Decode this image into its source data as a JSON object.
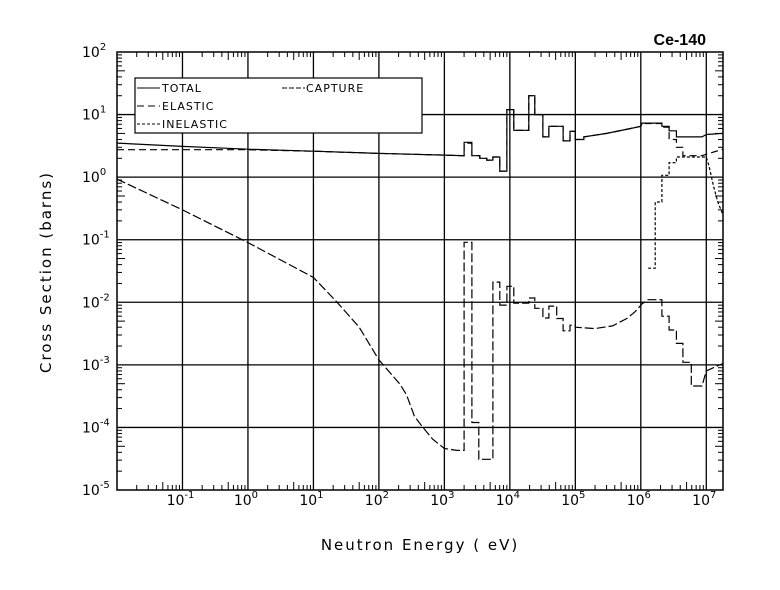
{
  "chart_data": {
    "type": "line",
    "title": "Ce-140",
    "xlabel": "Neutron Energy ( eV)",
    "ylabel": "Cross Section (barns)",
    "xscale": "log",
    "yscale": "log",
    "xlim": [
      0.01,
      18000000
    ],
    "ylim": [
      1e-05,
      100
    ],
    "grid": true,
    "legend_position": "top-left",
    "tick_base": "10",
    "x_tick_exponents": [
      "-1",
      "0",
      "1",
      "2",
      "3",
      "4",
      "5",
      "6",
      "7"
    ],
    "y_tick_exponents": [
      "2",
      "1",
      "0",
      "-1",
      "-2",
      "-3",
      "-4",
      "-5"
    ],
    "series": [
      {
        "name": "TOTAL",
        "style": "solid",
        "points": [
          [
            0.01,
            3.5
          ],
          [
            0.1,
            3.1
          ],
          [
            1,
            2.8
          ],
          [
            10,
            2.6
          ],
          [
            100,
            2.4
          ],
          [
            1000,
            2.25
          ],
          [
            2000,
            2.2
          ],
          [
            2000,
            3.6
          ],
          [
            2630,
            3.6
          ],
          [
            2630,
            2.2
          ],
          [
            3480,
            2.2
          ],
          [
            3480,
            2.0
          ],
          [
            4450,
            2.0
          ],
          [
            4450,
            1.87
          ],
          [
            5500,
            1.87
          ],
          [
            5500,
            2.1
          ],
          [
            7030,
            2.1
          ],
          [
            7030,
            1.25
          ],
          [
            9000,
            1.25
          ],
          [
            9000,
            12
          ],
          [
            11500,
            12
          ],
          [
            11500,
            5.6
          ],
          [
            19500,
            5.6
          ],
          [
            19500,
            20
          ],
          [
            24000,
            20
          ],
          [
            24000,
            10
          ],
          [
            32000,
            10
          ],
          [
            32000,
            4.4
          ],
          [
            39500,
            4.4
          ],
          [
            39500,
            6.5
          ],
          [
            65000,
            6.5
          ],
          [
            65000,
            3.8
          ],
          [
            83000,
            3.8
          ],
          [
            83000,
            5.4
          ],
          [
            100000,
            5.4
          ],
          [
            100000,
            4.0
          ],
          [
            135000,
            4.0
          ],
          [
            135000,
            4.4
          ],
          [
            300000,
            5.0
          ],
          [
            600000,
            5.8
          ],
          [
            1000000,
            6.5
          ],
          [
            1050000,
            7.3
          ],
          [
            2100000,
            7.3
          ],
          [
            2100000,
            6.5
          ],
          [
            2700000,
            6.5
          ],
          [
            2700000,
            5.5
          ],
          [
            3500000,
            5.5
          ],
          [
            3500000,
            4.4
          ],
          [
            8600000,
            4.4
          ],
          [
            10000000,
            4.8
          ],
          [
            18000000,
            5.0
          ]
        ]
      },
      {
        "name": "ELASTIC",
        "style": "dashed",
        "points": [
          [
            0.01,
            2.75
          ],
          [
            0.1,
            2.75
          ],
          [
            1,
            2.75
          ],
          [
            10,
            2.6
          ],
          [
            100,
            2.4
          ],
          [
            1000,
            2.25
          ],
          [
            2000,
            2.2
          ],
          [
            2000,
            3.5
          ],
          [
            2630,
            3.5
          ],
          [
            2630,
            2.2
          ],
          [
            3480,
            2.2
          ],
          [
            3480,
            2.0
          ],
          [
            4450,
            2.0
          ],
          [
            4450,
            1.87
          ],
          [
            5500,
            1.87
          ],
          [
            5500,
            2.1
          ],
          [
            7030,
            2.1
          ],
          [
            7030,
            1.25
          ],
          [
            9000,
            1.25
          ],
          [
            9000,
            12
          ],
          [
            11500,
            12
          ],
          [
            11500,
            5.6
          ],
          [
            19500,
            5.6
          ],
          [
            19500,
            20
          ],
          [
            24000,
            20
          ],
          [
            24000,
            10
          ],
          [
            32000,
            10
          ],
          [
            32000,
            4.4
          ],
          [
            39500,
            4.4
          ],
          [
            39500,
            6.5
          ],
          [
            65000,
            6.5
          ],
          [
            65000,
            3.8
          ],
          [
            83000,
            3.8
          ],
          [
            83000,
            5.4
          ],
          [
            100000,
            5.4
          ],
          [
            100000,
            4.0
          ],
          [
            135000,
            4.0
          ],
          [
            135000,
            4.4
          ],
          [
            300000,
            5.0
          ],
          [
            600000,
            5.8
          ],
          [
            1000000,
            6.5
          ],
          [
            1050000,
            7.2
          ],
          [
            2100000,
            7.2
          ],
          [
            2100000,
            6.3
          ],
          [
            2700000,
            6.3
          ],
          [
            2700000,
            4.0
          ],
          [
            3500000,
            4.0
          ],
          [
            3500000,
            3.0
          ],
          [
            4400000,
            3.0
          ],
          [
            4400000,
            2.2
          ],
          [
            8600000,
            2.2
          ],
          [
            11000000,
            2.4
          ],
          [
            18000000,
            2.8
          ]
        ]
      },
      {
        "name": "INELASTIC",
        "style": "short-dashed",
        "points": [
          [
            1290000,
            0.035
          ],
          [
            1660000,
            0.035
          ],
          [
            1660000,
            0.4
          ],
          [
            2100000,
            0.4
          ],
          [
            2100000,
            1.07
          ],
          [
            2700000,
            1.07
          ],
          [
            2700000,
            1.7
          ],
          [
            3500000,
            1.7
          ],
          [
            3500000,
            2.1
          ],
          [
            10000000,
            2.1
          ],
          [
            11000000,
            1.5
          ],
          [
            13000000,
            0.7
          ],
          [
            15000000,
            0.4
          ],
          [
            18000000,
            0.25
          ]
        ]
      },
      {
        "name": "CAPTURE",
        "style": "dash-dot",
        "points": [
          [
            0.01,
            0.93
          ],
          [
            0.1,
            0.3
          ],
          [
            1,
            0.09
          ],
          [
            10,
            0.025
          ],
          [
            23,
            0.01
          ],
          [
            50,
            0.004
          ],
          [
            100,
            0.0012
          ],
          [
            210,
            0.00049
          ],
          [
            265,
            0.00033
          ],
          [
            350,
            0.00015
          ],
          [
            470,
            0.0001
          ],
          [
            660,
            6.5e-05
          ],
          [
            1000,
            4.6e-05
          ],
          [
            1550,
            4.3e-05
          ],
          [
            2000,
            4.3e-05
          ],
          [
            2000,
            0.091
          ],
          [
            2630,
            0.091
          ],
          [
            2630,
            0.00012
          ],
          [
            3360,
            0.00012
          ],
          [
            3360,
            3.1e-05
          ],
          [
            5500,
            3.1e-05
          ],
          [
            5500,
            0.021
          ],
          [
            7030,
            0.021
          ],
          [
            7030,
            0.009
          ],
          [
            9000,
            0.009
          ],
          [
            9000,
            0.018
          ],
          [
            11500,
            0.018
          ],
          [
            11500,
            0.0097
          ],
          [
            19500,
            0.0097
          ],
          [
            19500,
            0.0117
          ],
          [
            24000,
            0.0117
          ],
          [
            24000,
            0.008
          ],
          [
            32000,
            0.008
          ],
          [
            32000,
            0.0056
          ],
          [
            39500,
            0.0056
          ],
          [
            39500,
            0.0087
          ],
          [
            52000,
            0.0087
          ],
          [
            52000,
            0.0055
          ],
          [
            65000,
            0.0055
          ],
          [
            65000,
            0.0035
          ],
          [
            83000,
            0.0035
          ],
          [
            83000,
            0.0043
          ],
          [
            100000,
            0.0043
          ],
          [
            100000,
            0.004
          ],
          [
            200000,
            0.0038
          ],
          [
            370000,
            0.0042
          ],
          [
            610000,
            0.0055
          ],
          [
            810000,
            0.007
          ],
          [
            1050000,
            0.0095
          ],
          [
            1290000,
            0.011
          ],
          [
            2100000,
            0.011
          ],
          [
            2100000,
            0.006
          ],
          [
            2700000,
            0.006
          ],
          [
            2700000,
            0.0036
          ],
          [
            3500000,
            0.0036
          ],
          [
            3500000,
            0.0022
          ],
          [
            4400000,
            0.0022
          ],
          [
            4400000,
            0.0011
          ],
          [
            5900000,
            0.0011
          ],
          [
            5900000,
            0.00046
          ],
          [
            8600000,
            0.00046
          ],
          [
            10000000,
            0.0008
          ],
          [
            18000000,
            0.00105
          ]
        ]
      }
    ],
    "legend": [
      "TOTAL",
      "CAPTURE",
      "ELASTIC",
      "INELASTIC"
    ]
  }
}
